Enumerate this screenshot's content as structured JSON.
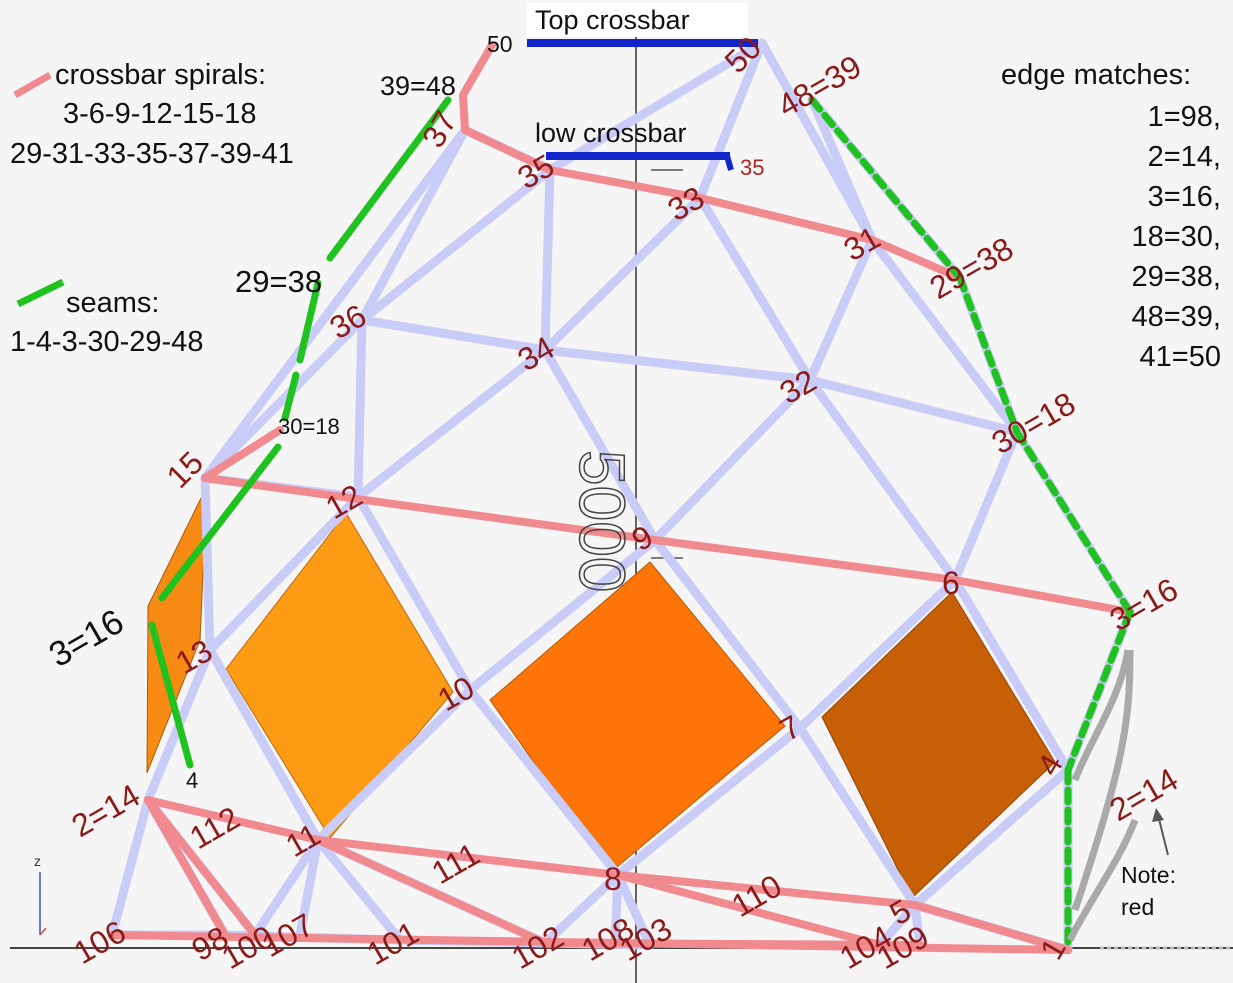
{
  "titles": {
    "top_crossbar": "Top crossbar",
    "low_crossbar": "low crossbar"
  },
  "legend": {
    "spirals_heading": "crossbar spirals:",
    "spirals_line1": "3-6-9-12-15-18",
    "spirals_line2": "29-31-33-35-37-39-41",
    "seams_heading": "seams:",
    "seams_line": "1-4-3-30-29-48",
    "edge_heading": "edge matches:",
    "edge_matches": [
      "1=98,",
      "2=14,",
      "3=16,",
      "18=30,",
      "29=38,",
      "48=39,",
      "41=50"
    ]
  },
  "note": {
    "line1": "Note:",
    "line2": "red"
  },
  "axis_label": "z",
  "watermark": "5000",
  "colors": {
    "strut": "#c9ccf6",
    "spiral": "#f08a8f",
    "seam": "#1fc21f",
    "crossbar": "#1326c9",
    "label": "#8b1a1a",
    "panel_light": "#fd9b14",
    "panel_mid": "#fd7408",
    "panel_dark": "#c75f07"
  },
  "nodes": [
    {
      "id": "1",
      "label": "1"
    },
    {
      "id": "2",
      "label": "2=14"
    },
    {
      "id": "3",
      "label": "3=16"
    },
    {
      "id": "4",
      "label": "4"
    },
    {
      "id": "5",
      "label": "5"
    },
    {
      "id": "6",
      "label": "6"
    },
    {
      "id": "7",
      "label": "7"
    },
    {
      "id": "8",
      "label": "8"
    },
    {
      "id": "9",
      "label": "9"
    },
    {
      "id": "10",
      "label": "10"
    },
    {
      "id": "11",
      "label": "11"
    },
    {
      "id": "12",
      "label": "12"
    },
    {
      "id": "13",
      "label": "13"
    },
    {
      "id": "14",
      "label": "2=14"
    },
    {
      "id": "15",
      "label": "15"
    },
    {
      "id": "18",
      "label": "30=18"
    },
    {
      "id": "29",
      "label": "29=38"
    },
    {
      "id": "31",
      "label": "31"
    },
    {
      "id": "32",
      "label": "32"
    },
    {
      "id": "33",
      "label": "33"
    },
    {
      "id": "34",
      "label": "34"
    },
    {
      "id": "35",
      "label": "35"
    },
    {
      "id": "36",
      "label": "36"
    },
    {
      "id": "37",
      "label": "37"
    },
    {
      "id": "48",
      "label": "48=39"
    },
    {
      "id": "50",
      "label": "50"
    },
    {
      "id": "98",
      "label": "98"
    },
    {
      "id": "100",
      "label": "100"
    },
    {
      "id": "101",
      "label": "101"
    },
    {
      "id": "102",
      "label": "102"
    },
    {
      "id": "103",
      "label": "103"
    },
    {
      "id": "104",
      "label": "104"
    },
    {
      "id": "106",
      "label": "106"
    },
    {
      "id": "107",
      "label": "107"
    },
    {
      "id": "108",
      "label": "108"
    },
    {
      "id": "109",
      "label": "109"
    },
    {
      "id": "110",
      "label": "110"
    },
    {
      "id": "111",
      "label": "111"
    },
    {
      "id": "112",
      "label": "112"
    }
  ],
  "black_labels": {
    "l39_48": "39=48",
    "l29_38": "29=38",
    "l30_18": "30=18",
    "l3_16": "3=16",
    "l4": "4",
    "l50": "50",
    "l35": "35"
  }
}
